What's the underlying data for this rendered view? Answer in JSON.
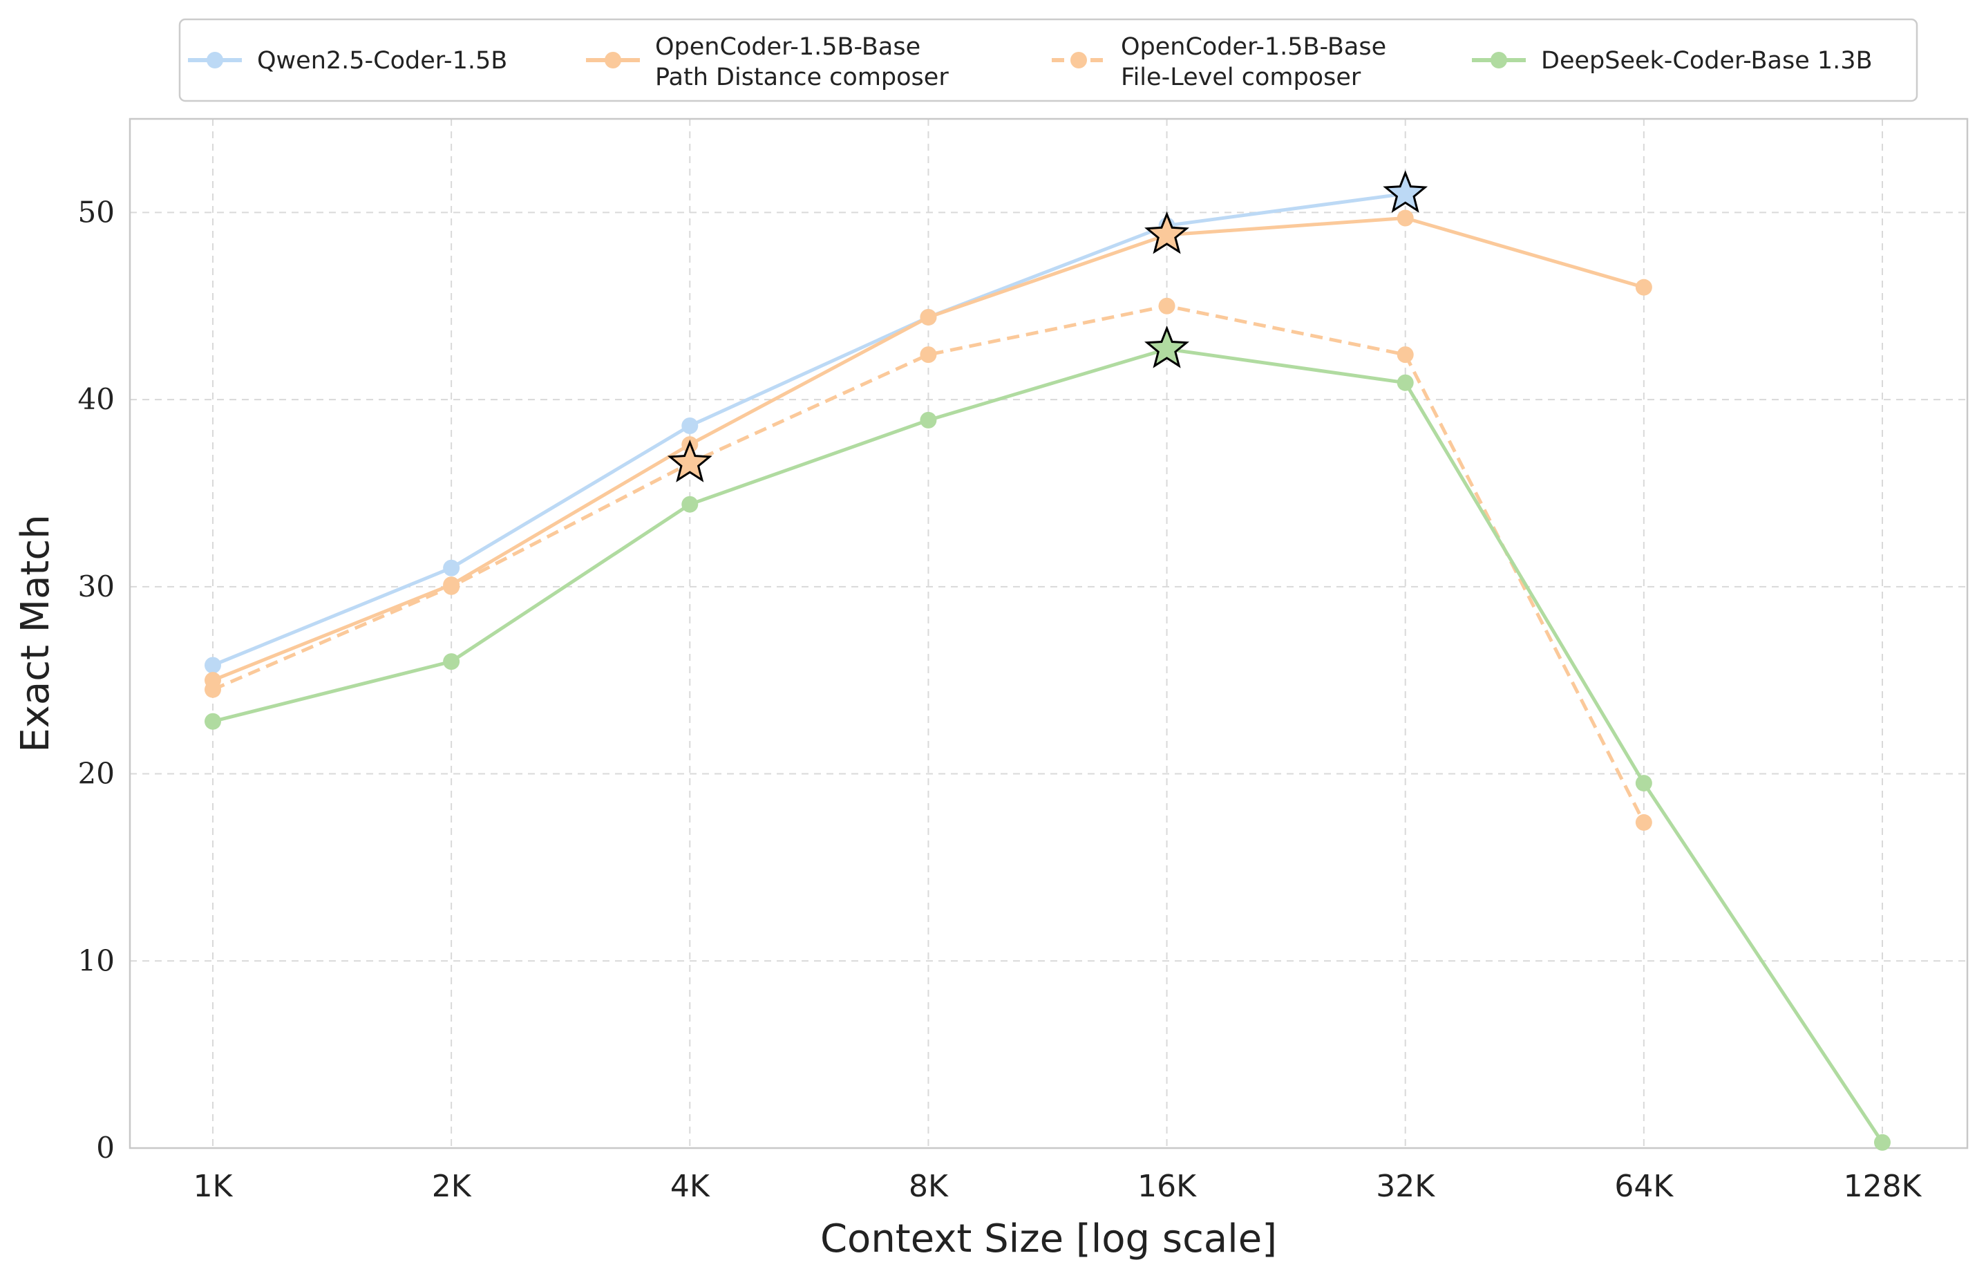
{
  "chart_data": {
    "type": "line",
    "title": "",
    "xlabel": "Context Size [log scale]",
    "ylabel": "Exact Match",
    "x_scale": "log2",
    "categories": [
      "1K",
      "2K",
      "4K",
      "8K",
      "16K",
      "32K",
      "64K",
      "128K"
    ],
    "ylim": [
      0,
      55
    ],
    "y_ticks": [
      0,
      10,
      20,
      30,
      40,
      50
    ],
    "grid": true,
    "legend_placement": "top-center",
    "series": [
      {
        "name": "Qwen2.5-Coder-1.5B",
        "color": "#bcd9f5",
        "dashed": false,
        "values": [
          25.8,
          31.0,
          38.6,
          44.4,
          49.3,
          51.0,
          null,
          null
        ],
        "best_index": 5
      },
      {
        "name": "OpenCoder-1.5B-Base\nPath Distance composer",
        "color": "#fbc99a",
        "dashed": false,
        "values": [
          25.0,
          30.1,
          37.6,
          44.4,
          48.8,
          49.7,
          46.0,
          null
        ],
        "best_index": 4
      },
      {
        "name": "OpenCoder-1.5B-Base\nFile-Level composer",
        "color": "#fbc99a",
        "dashed": true,
        "values": [
          24.5,
          30.0,
          36.6,
          42.4,
          45.0,
          42.4,
          17.4,
          null
        ],
        "best_index": 2
      },
      {
        "name": "DeepSeek-Coder-Base 1.3B",
        "color": "#b0dba0",
        "dashed": false,
        "values": [
          22.8,
          26.0,
          34.4,
          38.9,
          42.7,
          40.9,
          19.5,
          0.3
        ],
        "best_index": 4
      }
    ]
  }
}
